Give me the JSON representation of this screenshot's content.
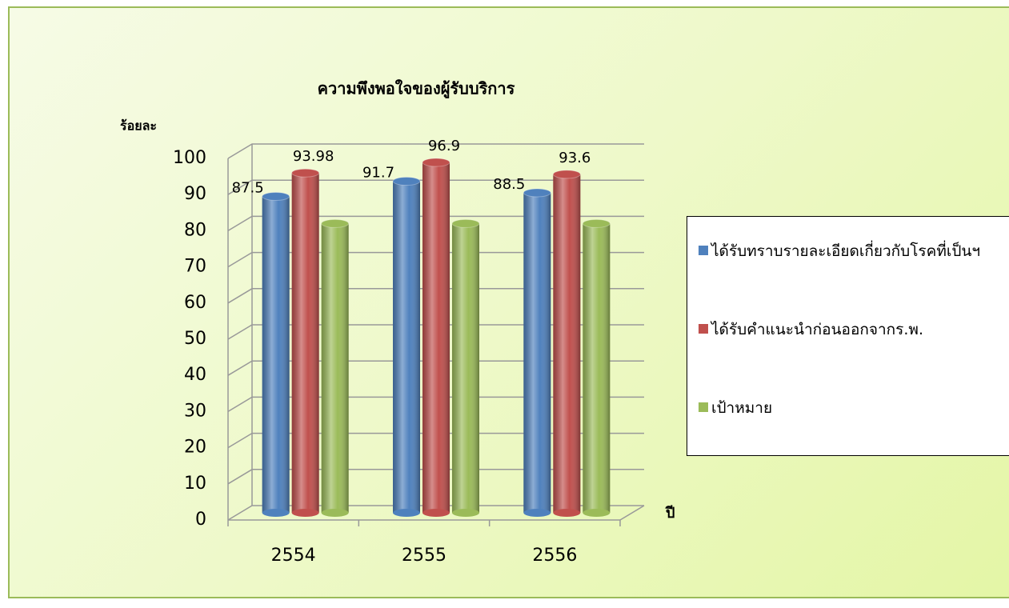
{
  "chart_data": {
    "type": "bar",
    "title": "ความพึงพอใจของผู้รับบริการ",
    "y_label": "ร้อยละ",
    "x_label": "ปี",
    "categories": [
      "2554",
      "2555",
      "2556"
    ],
    "series": [
      {
        "name": "ได้รับทราบรายละเอียดเกี่ยวกับโรคที่เป็นฯ",
        "color": "#4f81bd",
        "values": [
          87.5,
          91.7,
          88.5
        ],
        "show_labels": true
      },
      {
        "name": "ได้รับคำแนะนำก่อนออกจากร.พ.",
        "color": "#c0504d",
        "values": [
          93.98,
          96.9,
          93.6
        ],
        "show_labels": true
      },
      {
        "name": "เป้าหมาย",
        "color": "#9bbb59",
        "values": [
          80,
          80,
          80
        ],
        "show_labels": false
      }
    ],
    "ylim": [
      0,
      100
    ],
    "yticks": [
      0,
      10,
      20,
      30,
      40,
      50,
      60,
      70,
      80,
      90,
      100
    ],
    "grid": true,
    "legend": "right"
  }
}
